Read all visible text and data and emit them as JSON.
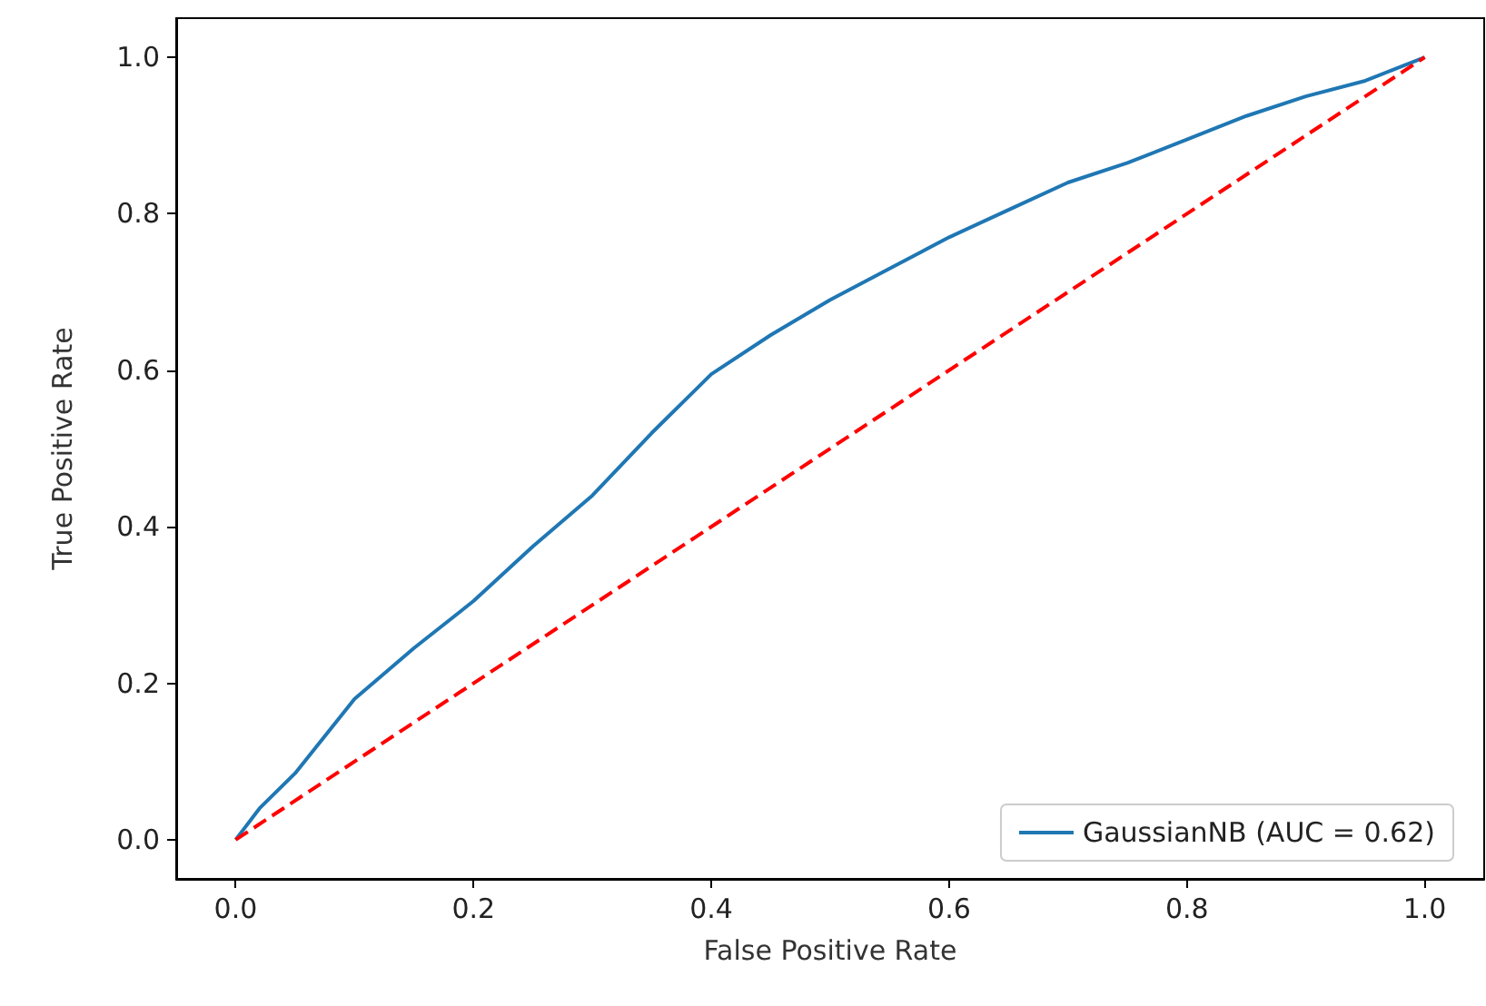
{
  "chart_data": {
    "type": "line",
    "xlabel": "False Positive Rate",
    "ylabel": "True Positive Rate",
    "xlim": [
      -0.05,
      1.05
    ],
    "ylim": [
      -0.05,
      1.05
    ],
    "xticks": [
      {
        "value": 0,
        "label": "0.0"
      },
      0.2,
      0.4,
      0.6,
      0.8,
      {
        "value": 1,
        "label": "1.0"
      }
    ],
    "yticks": [
      {
        "value": 0,
        "label": "0.0"
      },
      0.2,
      0.4,
      0.6,
      0.8,
      {
        "value": 1,
        "label": "1.0"
      }
    ],
    "legend": "bottom right",
    "grid": false,
    "marker": "none",
    "series": [
      {
        "name": "GaussianNB (AUC = 0.62)",
        "color": "#1f77b4",
        "line_style": "solid",
        "x": [
          0,
          0.02,
          0.05,
          0.1,
          0.15,
          0.2,
          0.25,
          0.3,
          0.35,
          0.4,
          0.45,
          0.5,
          0.55,
          0.6,
          0.65,
          0.7,
          0.75,
          0.8,
          0.85,
          0.9,
          0.95,
          1.0
        ],
        "values": [
          0,
          0.04,
          0.085,
          0.18,
          0.245,
          0.305,
          0.375,
          0.44,
          0.52,
          0.595,
          0.645,
          0.69,
          0.73,
          0.77,
          0.805,
          0.84,
          0.865,
          0.895,
          0.925,
          0.95,
          0.97,
          1.0
        ]
      },
      {
        "color": "#ff0000",
        "line_style": "dashed",
        "x": [
          0,
          1
        ],
        "values": [
          0,
          1
        ]
      }
    ]
  }
}
